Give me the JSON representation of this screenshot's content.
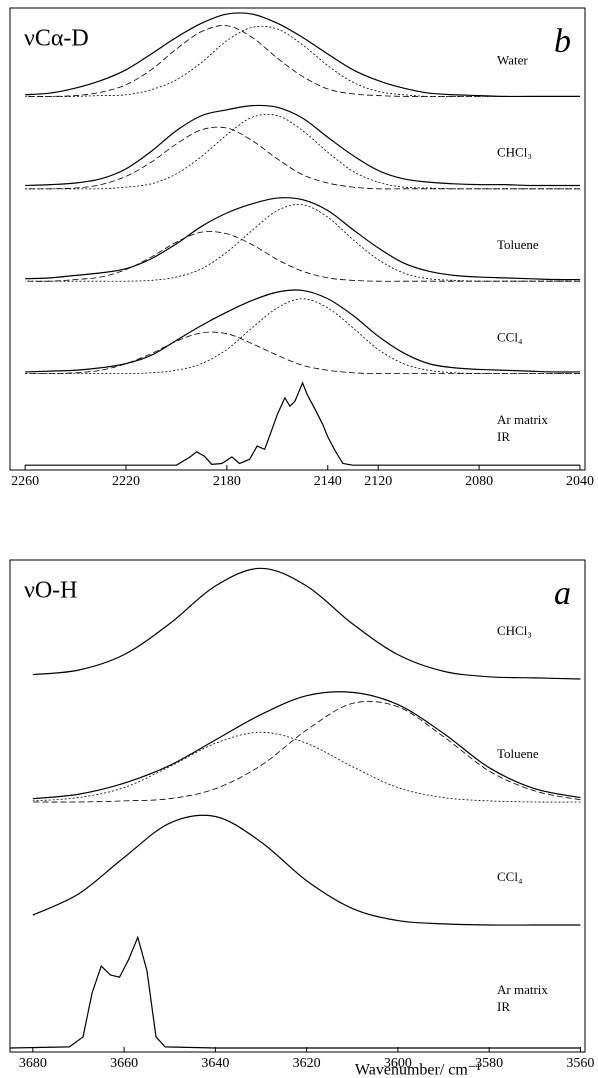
{
  "chart_data": [
    {
      "type": "line",
      "title": "νCα-D",
      "label": "b",
      "color": "#000000",
      "xlim": [
        2266,
        2038
      ],
      "xticks": [
        2260,
        2220,
        2180,
        2140,
        2120,
        2080,
        2040
      ],
      "x": [
        2040,
        2050,
        2060,
        2070,
        2080,
        2090,
        2100,
        2110,
        2120,
        2130,
        2140,
        2150,
        2160,
        2170,
        2180,
        2190,
        2200,
        2210,
        2220,
        2230,
        2240,
        2250,
        2260
      ],
      "groups": [
        {
          "label": "Water",
          "series": [
            {
              "style": "solid",
              "values": [
                0,
                0,
                0,
                0,
                0.01,
                0.02,
                0.04,
                0.1,
                0.19,
                0.32,
                0.51,
                0.71,
                0.88,
                0.99,
                0.99,
                0.88,
                0.71,
                0.51,
                0.32,
                0.19,
                0.1,
                0.04,
                0.02
              ]
            },
            {
              "style": "dashed",
              "values": [
                0,
                0,
                0,
                0,
                0,
                0,
                0,
                0,
                0.01,
                0.03,
                0.09,
                0.24,
                0.46,
                0.71,
                0.85,
                0.78,
                0.57,
                0.32,
                0.14,
                0.05,
                0.01,
                0,
                0
              ]
            },
            {
              "style": "dotted",
              "values": [
                0,
                0,
                0,
                0,
                0,
                0,
                0,
                0.02,
                0.06,
                0.17,
                0.37,
                0.62,
                0.81,
                0.83,
                0.67,
                0.41,
                0.2,
                0.08,
                0.02,
                0.01,
                0,
                0,
                0
              ]
            }
          ]
        },
        {
          "label": "CHCl₃",
          "series": [
            {
              "style": "solid",
              "values": [
                0.04,
                0.04,
                0.04,
                0.05,
                0.05,
                0.06,
                0.08,
                0.12,
                0.22,
                0.4,
                0.62,
                0.85,
                0.98,
                1.0,
                0.95,
                0.88,
                0.7,
                0.45,
                0.24,
                0.12,
                0.07,
                0.05,
                0.04
              ]
            },
            {
              "style": "dashed",
              "values": [
                0,
                0,
                0,
                0,
                0,
                0,
                0,
                0,
                0,
                0.02,
                0.07,
                0.17,
                0.36,
                0.58,
                0.73,
                0.71,
                0.54,
                0.32,
                0.15,
                0.05,
                0.01,
                0,
                0
              ]
            },
            {
              "style": "dotted",
              "values": [
                0,
                0,
                0,
                0,
                0,
                0,
                0.01,
                0.02,
                0.08,
                0.21,
                0.44,
                0.7,
                0.88,
                0.86,
                0.65,
                0.39,
                0.18,
                0.06,
                0.02,
                0,
                0,
                0,
                0
              ]
            }
          ]
        },
        {
          "label": "Toluene",
          "series": [
            {
              "style": "solid",
              "values": [
                0.02,
                0.02,
                0.03,
                0.04,
                0.05,
                0.07,
                0.12,
                0.22,
                0.4,
                0.62,
                0.85,
                0.98,
                1.0,
                0.93,
                0.82,
                0.66,
                0.45,
                0.27,
                0.15,
                0.1,
                0.07,
                0.04,
                0.03
              ]
            },
            {
              "style": "dashed",
              "values": [
                0,
                0,
                0,
                0,
                0,
                0,
                0,
                0,
                0,
                0.01,
                0.04,
                0.12,
                0.26,
                0.44,
                0.57,
                0.59,
                0.47,
                0.29,
                0.14,
                0.05,
                0.02,
                0,
                0
              ]
            },
            {
              "style": "dotted",
              "values": [
                0,
                0,
                0,
                0,
                0,
                0.01,
                0.03,
                0.1,
                0.26,
                0.5,
                0.77,
                0.92,
                0.85,
                0.61,
                0.35,
                0.15,
                0.05,
                0.01,
                0,
                0,
                0,
                0,
                0
              ]
            }
          ]
        },
        {
          "label": "CCl₄",
          "series": [
            {
              "style": "solid",
              "values": [
                0.02,
                0.02,
                0.03,
                0.04,
                0.05,
                0.07,
                0.12,
                0.25,
                0.45,
                0.7,
                0.9,
                1.0,
                0.98,
                0.88,
                0.74,
                0.58,
                0.4,
                0.22,
                0.12,
                0.07,
                0.04,
                0.03,
                0.02
              ]
            },
            {
              "style": "dashed",
              "values": [
                0,
                0,
                0,
                0,
                0,
                0,
                0,
                0,
                0,
                0.01,
                0.04,
                0.1,
                0.22,
                0.36,
                0.48,
                0.49,
                0.39,
                0.24,
                0.12,
                0.04,
                0.01,
                0,
                0
              ]
            },
            {
              "style": "dotted",
              "values": [
                0,
                0,
                0,
                0,
                0,
                0.01,
                0.04,
                0.12,
                0.29,
                0.55,
                0.79,
                0.9,
                0.79,
                0.55,
                0.29,
                0.12,
                0.04,
                0.01,
                0,
                0,
                0,
                0,
                0
              ]
            }
          ]
        },
        {
          "label": [
            "Ar matrix",
            "IR"
          ],
          "series": [
            {
              "style": "solid",
              "x": [
                2260,
                2200,
                2195,
                2192,
                2189,
                2186,
                2182,
                2178,
                2175,
                2171,
                2168,
                2165,
                2162,
                2160,
                2157,
                2155,
                2153,
                2150,
                2148,
                2145,
                2142,
                2140,
                2137,
                2134,
                2130,
                2040
              ],
              "values": [
                0.01,
                0.01,
                0.1,
                0.17,
                0.12,
                0.02,
                0.03,
                0.11,
                0.03,
                0.08,
                0.24,
                0.2,
                0.45,
                0.62,
                0.82,
                0.72,
                0.78,
                1.0,
                0.85,
                0.68,
                0.5,
                0.35,
                0.18,
                0.03,
                0.01,
                0.01
              ]
            }
          ]
        }
      ]
    },
    {
      "type": "line",
      "title": "νO-H",
      "label": "a",
      "color": "#000000",
      "xlabel": "Wavenumber/ cm⁻¹",
      "xlim": [
        3685,
        3559
      ],
      "xticks": [
        3680,
        3660,
        3640,
        3620,
        3600,
        3580,
        3560
      ],
      "x": [
        3560,
        3570,
        3580,
        3590,
        3600,
        3610,
        3620,
        3630,
        3640,
        3650,
        3660,
        3670,
        3680
      ],
      "groups": [
        {
          "label": "CHCl₃",
          "series": [
            {
              "style": "solid",
              "values": [
                0,
                0.01,
                0.02,
                0.07,
                0.22,
                0.5,
                0.84,
                1.0,
                0.84,
                0.5,
                0.22,
                0.08,
                0.04
              ]
            }
          ]
        },
        {
          "label": "Toluene",
          "series": [
            {
              "style": "solid",
              "values": [
                0.04,
                0.12,
                0.31,
                0.62,
                0.88,
                0.99,
                0.96,
                0.79,
                0.56,
                0.33,
                0.17,
                0.07,
                0.03
              ]
            },
            {
              "style": "dashed",
              "values": [
                0.02,
                0.1,
                0.28,
                0.59,
                0.86,
                0.89,
                0.65,
                0.33,
                0.12,
                0.03,
                0.01,
                0,
                0
              ]
            },
            {
              "style": "dotted",
              "values": [
                0,
                0,
                0.01,
                0.04,
                0.13,
                0.32,
                0.53,
                0.63,
                0.53,
                0.32,
                0.13,
                0.04,
                0.01
              ]
            }
          ]
        },
        {
          "label": "CCl₄",
          "series": [
            {
              "style": "solid",
              "values": [
                0,
                0,
                0,
                0.01,
                0.04,
                0.15,
                0.4,
                0.75,
                0.98,
                0.92,
                0.61,
                0.28,
                0.09
              ]
            }
          ]
        },
        {
          "label": [
            "Ar matrix",
            "IR"
          ],
          "series": [
            {
              "style": "solid",
              "x": [
                3685,
                3672,
                3669,
                3667,
                3665,
                3663,
                3661,
                3659,
                3657,
                3655,
                3653,
                3651,
                3640,
                3560
              ],
              "values": [
                0,
                0.01,
                0.1,
                0.5,
                0.74,
                0.66,
                0.64,
                0.8,
                1.0,
                0.7,
                0.1,
                0.01,
                0,
                0
              ]
            }
          ]
        }
      ]
    }
  ]
}
